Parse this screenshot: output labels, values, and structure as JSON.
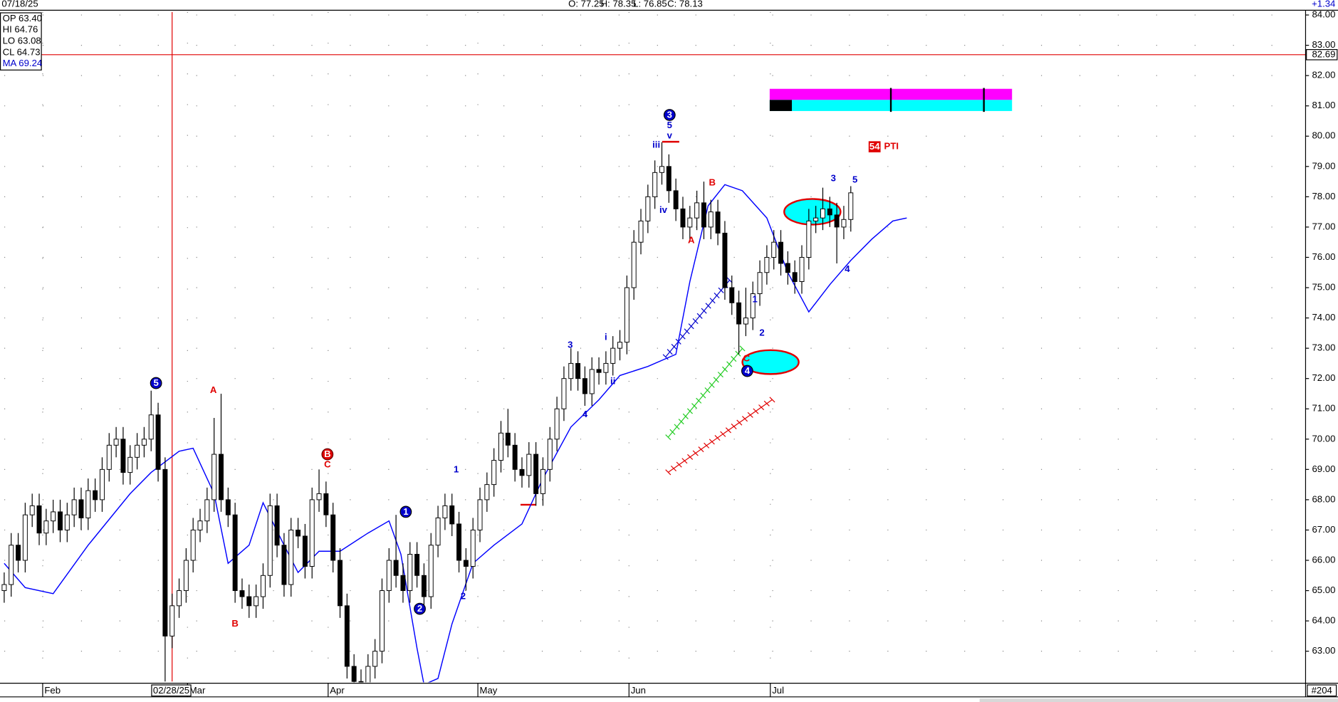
{
  "header": {
    "date": "07/18/25",
    "ohlc": [
      "O: 77.25",
      "H: 78.35",
      "L: 76.85",
      "C: 78.13"
    ],
    "change": "+1.34"
  },
  "info_box": [
    "OP 63.40",
    "HI 64.76",
    "LO 63.08",
    "CL 64.73",
    "MA 69.24"
  ],
  "corner_label": "#204",
  "chart_data": {
    "type": "candlestick",
    "open": [
      65.0,
      65.2,
      66.5,
      66.0,
      67.5,
      67.8,
      66.9,
      67.3,
      67.6,
      67.0,
      67.5,
      68.0,
      67.4,
      68.3,
      68.0,
      69.0,
      69.8,
      70.0,
      68.9,
      69.4,
      69.8,
      70.0,
      70.8,
      69.0,
      63.5,
      64.5,
      65.0,
      66.0,
      67.0,
      67.3,
      68.0,
      69.5,
      68.0,
      67.5,
      65.0,
      64.8,
      64.5,
      64.8,
      65.5,
      67.8,
      66.5,
      65.2,
      67.0,
      66.8,
      65.8,
      68.0,
      68.2,
      67.5,
      66.0,
      64.5,
      62.5,
      62.0,
      61.8,
      62.5,
      63.0,
      65.0,
      66.0,
      65.5,
      65.0,
      66.2,
      65.5,
      64.8,
      66.5,
      67.4,
      67.8,
      67.2,
      66.0,
      65.8,
      67.0,
      68.0,
      68.5,
      69.3,
      70.2,
      69.8,
      69.0,
      68.8,
      69.5,
      68.2,
      69.0,
      70.0,
      71.0,
      72.0,
      72.5,
      72.0,
      71.5,
      72.3,
      72.2,
      72.5,
      73.0,
      73.2,
      75.0,
      76.5,
      77.2,
      78.0,
      78.8,
      79.0,
      78.2,
      77.6,
      77.0,
      77.3,
      77.8,
      77.0,
      77.5,
      76.8,
      75.0,
      74.5,
      73.8,
      74.0,
      74.8,
      75.5,
      76.0,
      76.5,
      75.8,
      75.5,
      75.2,
      76.0,
      77.2,
      77.3,
      77.6,
      77.4,
      77.0,
      77.25
    ],
    "high": [
      65.6,
      66.9,
      66.9,
      67.9,
      68.2,
      68.2,
      67.7,
      68.0,
      68.0,
      67.9,
      68.4,
      68.4,
      68.7,
      68.7,
      69.4,
      70.2,
      70.4,
      70.4,
      69.8,
      70.2,
      70.4,
      71.6,
      71.2,
      69.4,
      64.9,
      65.4,
      66.4,
      67.4,
      67.7,
      68.4,
      70.7,
      71.5,
      68.4,
      67.9,
      65.4,
      65.2,
      65.2,
      65.9,
      68.2,
      68.2,
      66.9,
      67.4,
      67.4,
      67.2,
      68.4,
      69.0,
      68.6,
      67.9,
      66.4,
      64.9,
      62.9,
      62.4,
      62.9,
      63.4,
      65.4,
      66.4,
      67.5,
      65.9,
      66.6,
      66.6,
      65.9,
      66.9,
      67.8,
      68.2,
      68.2,
      67.6,
      66.4,
      67.4,
      68.4,
      68.9,
      69.7,
      70.6,
      71.0,
      70.2,
      69.4,
      69.9,
      69.9,
      69.4,
      70.4,
      71.4,
      72.4,
      73.0,
      72.9,
      72.4,
      72.7,
      72.7,
      72.9,
      73.4,
      73.6,
      75.4,
      76.9,
      77.6,
      78.4,
      79.2,
      79.8,
      79.4,
      78.6,
      78.0,
      77.7,
      78.2,
      78.5,
      77.9,
      77.9,
      77.2,
      75.4,
      74.9,
      75.0,
      75.2,
      75.9,
      76.4,
      76.9,
      76.9,
      76.2,
      75.9,
      76.4,
      77.6,
      77.7,
      78.3,
      78.0,
      77.8,
      77.7,
      78.35
    ],
    "low": [
      64.6,
      64.8,
      65.6,
      65.6,
      67.1,
      66.5,
      66.5,
      66.9,
      66.6,
      66.6,
      67.1,
      67.0,
      67.0,
      67.6,
      67.6,
      68.6,
      69.4,
      68.5,
      68.5,
      69.0,
      69.4,
      69.6,
      68.6,
      62.0,
      63.1,
      64.1,
      64.6,
      65.6,
      66.6,
      66.9,
      67.6,
      67.6,
      67.1,
      64.6,
      64.4,
      64.1,
      64.1,
      64.4,
      65.1,
      66.1,
      64.8,
      64.8,
      66.4,
      65.4,
      65.4,
      67.6,
      67.1,
      65.6,
      64.1,
      62.1,
      61.6,
      61.4,
      61.4,
      62.1,
      62.6,
      64.6,
      65.1,
      64.6,
      64.6,
      65.1,
      64.4,
      64.4,
      66.1,
      67.0,
      66.8,
      65.6,
      65.0,
      65.4,
      66.6,
      67.6,
      68.1,
      68.9,
      69.4,
      68.6,
      68.4,
      68.4,
      67.8,
      67.8,
      68.6,
      69.6,
      70.6,
      71.6,
      71.6,
      71.1,
      71.1,
      71.8,
      71.8,
      72.1,
      72.6,
      72.8,
      74.6,
      76.1,
      76.8,
      77.6,
      78.4,
      77.8,
      77.2,
      76.6,
      76.6,
      76.9,
      76.6,
      76.6,
      76.4,
      74.6,
      74.1,
      72.8,
      73.4,
      73.6,
      74.4,
      75.1,
      75.6,
      75.4,
      75.1,
      74.8,
      74.8,
      75.6,
      76.8,
      76.9,
      77.0,
      75.8,
      76.6,
      76.85
    ],
    "close": [
      65.2,
      66.5,
      66.0,
      67.5,
      67.8,
      66.9,
      67.3,
      67.6,
      67.0,
      67.5,
      68.0,
      67.4,
      68.3,
      68.0,
      69.0,
      69.8,
      70.0,
      68.9,
      69.4,
      69.8,
      70.0,
      70.8,
      69.0,
      63.5,
      64.5,
      65.0,
      66.0,
      67.0,
      67.3,
      68.0,
      69.5,
      68.0,
      67.5,
      65.0,
      64.8,
      64.5,
      64.8,
      65.5,
      67.8,
      66.5,
      65.2,
      67.0,
      66.8,
      65.8,
      68.0,
      68.2,
      67.5,
      66.0,
      64.5,
      62.5,
      62.0,
      61.8,
      62.5,
      63.0,
      65.0,
      66.0,
      65.5,
      65.0,
      66.2,
      65.5,
      64.8,
      66.5,
      67.4,
      67.8,
      67.2,
      66.0,
      65.8,
      67.0,
      68.0,
      68.5,
      69.3,
      70.2,
      69.8,
      69.0,
      68.8,
      69.5,
      68.2,
      69.0,
      70.0,
      71.0,
      72.0,
      72.5,
      72.0,
      71.5,
      72.3,
      72.2,
      72.5,
      73.0,
      73.2,
      75.0,
      76.5,
      77.2,
      78.0,
      78.8,
      79.0,
      78.2,
      77.6,
      77.0,
      77.3,
      77.8,
      77.0,
      77.5,
      76.8,
      75.0,
      74.5,
      73.8,
      74.0,
      74.8,
      75.5,
      76.0,
      76.5,
      75.8,
      75.5,
      75.2,
      76.0,
      77.2,
      77.3,
      77.6,
      77.4,
      77.0,
      77.25,
      78.13
    ],
    "up_color": "#ffffff",
    "down_color": "#000000",
    "ma": {
      "color": "#0000ff",
      "x": [
        0,
        3,
        7,
        12,
        18,
        21,
        25,
        27,
        30,
        32,
        35,
        37,
        40,
        42,
        45,
        48,
        52,
        55,
        56.7,
        59,
        60,
        62,
        64,
        67,
        70,
        74,
        77,
        81,
        85,
        88,
        92,
        96,
        98,
        100.6,
        103,
        105.5,
        109,
        112,
        115,
        118,
        121,
        124,
        127,
        129
      ],
      "values": [
        65.9,
        65.1,
        64.9,
        66.5,
        68.2,
        68.9,
        69.6,
        69.7,
        68.2,
        65.9,
        66.5,
        67.9,
        66.5,
        65.6,
        66.3,
        66.3,
        66.9,
        67.3,
        66.2,
        63.1,
        61.9,
        62.1,
        63.9,
        65.9,
        66.5,
        67.2,
        68.7,
        70.4,
        71.3,
        72.1,
        72.4,
        72.8,
        75.2,
        77.7,
        78.4,
        78.2,
        77.3,
        75.5,
        74.2,
        75.1,
        75.9,
        76.6,
        77.2,
        77.3
      ]
    },
    "xlim": [
      -0.6,
      186
    ],
    "ylim": [
      62.0,
      84.1
    ],
    "xticks": [
      {
        "value": 5.5,
        "label": "Feb"
      },
      {
        "value": 26.2,
        "label": "Mar"
      },
      {
        "value": 46.3,
        "label": "Apr"
      },
      {
        "value": 67.7,
        "label": "May"
      },
      {
        "value": 89.3,
        "label": "Jun"
      },
      {
        "value": 109.5,
        "label": "Jul"
      }
    ],
    "yticks": [
      {
        "value": 63,
        "label": "63.00"
      },
      {
        "value": 64,
        "label": "64.00"
      },
      {
        "value": 65,
        "label": "65.00"
      },
      {
        "value": 66,
        "label": "66.00"
      },
      {
        "value": 67,
        "label": "67.00"
      },
      {
        "value": 68,
        "label": "68.00"
      },
      {
        "value": 69,
        "label": "69.00"
      },
      {
        "value": 70,
        "label": "70.00"
      },
      {
        "value": 71,
        "label": "71.00"
      },
      {
        "value": 72,
        "label": "72.00"
      },
      {
        "value": 73,
        "label": "73.00"
      },
      {
        "value": 74,
        "label": "74.00"
      },
      {
        "value": 75,
        "label": "75.00"
      },
      {
        "value": 76,
        "label": "76.00"
      },
      {
        "value": 77,
        "label": "77.00"
      },
      {
        "value": 78,
        "label": "78.00"
      },
      {
        "value": 79,
        "label": "79.00"
      },
      {
        "value": 80,
        "label": "80.00"
      },
      {
        "value": 81,
        "label": "81.00"
      },
      {
        "value": 82,
        "label": "82.00"
      },
      {
        "value": 83,
        "label": "83.00"
      },
      {
        "value": 84,
        "label": "84.00"
      }
    ],
    "grid": true,
    "crosshair": {
      "x": 24,
      "price": 82.69,
      "date_label": "02/28/25"
    },
    "annotations": [
      {
        "text": "5",
        "x": 21.7,
        "y": 71.85,
        "color": "#0000cc",
        "style": "circled"
      },
      {
        "text": "A",
        "x": 29.9,
        "y": 71.6,
        "color": "#e00000"
      },
      {
        "text": "B",
        "x": 33.0,
        "y": 63.9,
        "color": "#e00000"
      },
      {
        "text": "B",
        "x": 46.2,
        "y": 69.5,
        "color": "#e00000",
        "style": "circled"
      },
      {
        "text": "C",
        "x": 46.2,
        "y": 69.15,
        "color": "#e00000"
      },
      {
        "text": "1",
        "x": 57.4,
        "y": 67.6,
        "color": "#0000cc",
        "style": "circled"
      },
      {
        "text": "2",
        "x": 59.4,
        "y": 64.4,
        "color": "#0000cc",
        "style": "circled"
      },
      {
        "text": "1",
        "x": 64.6,
        "y": 68.98,
        "color": "#0000cc"
      },
      {
        "text": "2",
        "x": 65.6,
        "y": 64.8,
        "color": "#0000cc"
      },
      {
        "text": "3",
        "x": 80.9,
        "y": 73.1,
        "color": "#0000cc"
      },
      {
        "text": "4",
        "x": 83.0,
        "y": 70.8,
        "color": "#0000cc"
      },
      {
        "text": "i",
        "x": 86.0,
        "y": 73.35,
        "color": "#0000cc"
      },
      {
        "text": "ii",
        "x": 87.0,
        "y": 71.9,
        "color": "#0000cc"
      },
      {
        "text": "iii",
        "x": 93.2,
        "y": 79.7,
        "color": "#0000cc"
      },
      {
        "text": "iv",
        "x": 94.2,
        "y": 77.55,
        "color": "#0000cc"
      },
      {
        "text": "3",
        "x": 95.1,
        "y": 80.7,
        "color": "#0000cc",
        "style": "circled"
      },
      {
        "text": "5",
        "x": 95.1,
        "y": 80.35,
        "color": "#0000cc"
      },
      {
        "text": "v",
        "x": 95.1,
        "y": 80.0,
        "color": "#0000cc"
      },
      {
        "text": "B",
        "x": 101.2,
        "y": 78.45,
        "color": "#e00000"
      },
      {
        "text": "A",
        "x": 98.2,
        "y": 76.55,
        "color": "#e00000"
      },
      {
        "text": "1",
        "x": 107.3,
        "y": 74.6,
        "color": "#0000cc"
      },
      {
        "text": "2",
        "x": 108.3,
        "y": 73.5,
        "color": "#0000cc"
      },
      {
        "text": "C",
        "x": 106.1,
        "y": 72.65,
        "color": "#e00000"
      },
      {
        "text": "4",
        "x": 106.2,
        "y": 72.25,
        "color": "#0000cc",
        "style": "circled"
      },
      {
        "text": "3",
        "x": 118.5,
        "y": 78.6,
        "color": "#0000cc"
      },
      {
        "text": "5",
        "x": 121.6,
        "y": 78.55,
        "color": "#0000cc"
      },
      {
        "text": "4",
        "x": 120.5,
        "y": 75.6,
        "color": "#0000cc"
      },
      {
        "text": "54",
        "x": 124.4,
        "y": 79.65,
        "color": "#e00000",
        "style": "boxed"
      },
      {
        "text": "PTI",
        "x": 126.8,
        "y": 79.65,
        "color": "#e00000"
      }
    ]
  }
}
